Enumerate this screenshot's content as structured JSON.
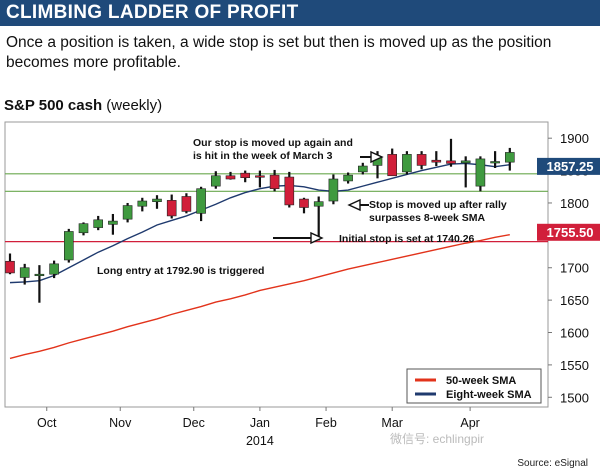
{
  "header": {
    "title": "CLIMBING LADDER OF PROFIT",
    "subtitle": "Once a position is taken, a wide stop is set but then is moved up as the position becomes more profitable."
  },
  "chart_heading": {
    "bold": "S&P 500 cash",
    "light": "(weekly)"
  },
  "source": "Source: eSignal",
  "watermark": "微信号: echlingpir",
  "colors": {
    "up": "#3f9a3f",
    "down": "#d11f3a",
    "sma50": "#e2331b",
    "sma8": "#1f3a6e",
    "hline_green": "#6aa84f",
    "hline_red": "#d11f3a",
    "tag_blue": "#1f4a7a",
    "tag_red": "#d11f3a"
  },
  "chart_data": {
    "type": "candlestick",
    "title": "S&P 500 cash (weekly)",
    "ylim": [
      1485,
      1925
    ],
    "yticks": [
      1500,
      1550,
      1600,
      1650,
      1700,
      1750,
      1800,
      1850,
      1900
    ],
    "x_month_labels": [
      "Oct",
      "Nov",
      "Dec",
      "Jan",
      "Feb",
      "Mar",
      "Apr"
    ],
    "x_month_week_index": [
      2.5,
      7.5,
      12.5,
      17,
      21.5,
      26,
      31.3
    ],
    "year_label": "2014",
    "hlines": [
      {
        "value": 1845,
        "label": "1857.25",
        "tag_value": 1857.25,
        "color": "green"
      },
      {
        "value": 1818,
        "label": "",
        "color": "green"
      },
      {
        "value": 1740.26,
        "label": "1755.50",
        "tag_value": 1755.5,
        "color": "red"
      }
    ],
    "candles": [
      {
        "o": 1710,
        "h": 1722,
        "l": 1690,
        "c": 1692
      },
      {
        "o": 1685,
        "h": 1706,
        "l": 1674,
        "c": 1700
      },
      {
        "o": 1690,
        "h": 1704,
        "l": 1646,
        "c": 1690
      },
      {
        "o": 1690,
        "h": 1711,
        "l": 1684,
        "c": 1706
      },
      {
        "o": 1712,
        "h": 1760,
        "l": 1708,
        "c": 1756
      },
      {
        "o": 1754,
        "h": 1770,
        "l": 1750,
        "c": 1768
      },
      {
        "o": 1762,
        "h": 1780,
        "l": 1758,
        "c": 1774
      },
      {
        "o": 1767,
        "h": 1783,
        "l": 1751,
        "c": 1772
      },
      {
        "o": 1775,
        "h": 1800,
        "l": 1770,
        "c": 1796
      },
      {
        "o": 1795,
        "h": 1808,
        "l": 1787,
        "c": 1803
      },
      {
        "o": 1802,
        "h": 1812,
        "l": 1791,
        "c": 1806
      },
      {
        "o": 1804,
        "h": 1813,
        "l": 1776,
        "c": 1780
      },
      {
        "o": 1810,
        "h": 1815,
        "l": 1784,
        "c": 1787
      },
      {
        "o": 1784,
        "h": 1825,
        "l": 1772,
        "c": 1822
      },
      {
        "o": 1826,
        "h": 1849,
        "l": 1822,
        "c": 1842
      },
      {
        "o": 1842,
        "h": 1848,
        "l": 1836,
        "c": 1837
      },
      {
        "o": 1846,
        "h": 1850,
        "l": 1832,
        "c": 1839
      },
      {
        "o": 1842,
        "h": 1850,
        "l": 1824,
        "c": 1840
      },
      {
        "o": 1843,
        "h": 1851,
        "l": 1818,
        "c": 1822
      },
      {
        "o": 1840,
        "h": 1848,
        "l": 1793,
        "c": 1797
      },
      {
        "o": 1806,
        "h": 1808,
        "l": 1784,
        "c": 1793
      },
      {
        "o": 1795,
        "h": 1810,
        "l": 1742,
        "c": 1802
      },
      {
        "o": 1803,
        "h": 1844,
        "l": 1798,
        "c": 1837
      },
      {
        "o": 1834,
        "h": 1847,
        "l": 1830,
        "c": 1843
      },
      {
        "o": 1848,
        "h": 1862,
        "l": 1844,
        "c": 1857
      },
      {
        "o": 1858,
        "h": 1880,
        "l": 1838,
        "c": 1870
      },
      {
        "o": 1875,
        "h": 1884,
        "l": 1842,
        "c": 1842
      },
      {
        "o": 1848,
        "h": 1880,
        "l": 1844,
        "c": 1875
      },
      {
        "o": 1875,
        "h": 1880,
        "l": 1852,
        "c": 1858
      },
      {
        "o": 1866,
        "h": 1880,
        "l": 1857,
        "c": 1863
      },
      {
        "o": 1865,
        "h": 1899,
        "l": 1856,
        "c": 1861
      },
      {
        "o": 1862,
        "h": 1872,
        "l": 1824,
        "c": 1865
      },
      {
        "o": 1826,
        "h": 1872,
        "l": 1818,
        "c": 1868
      },
      {
        "o": 1864,
        "h": 1880,
        "l": 1854,
        "c": 1864
      },
      {
        "o": 1863,
        "h": 1885,
        "l": 1850,
        "c": 1878
      }
    ],
    "series": [
      {
        "name": "50-week SMA",
        "values": [
          1560,
          1566,
          1571,
          1577,
          1584,
          1590,
          1596,
          1602,
          1609,
          1615,
          1621,
          1628,
          1634,
          1640,
          1647,
          1652,
          1658,
          1665,
          1670,
          1675,
          1680,
          1686,
          1692,
          1698,
          1703,
          1708,
          1713,
          1718,
          1723,
          1728,
          1733,
          1738,
          1742,
          1747,
          1751
        ]
      },
      {
        "name": "Eight-week SMA",
        "values": [
          1677,
          1678,
          1680,
          1688,
          1700,
          1712,
          1724,
          1734,
          1745,
          1755,
          1766,
          1773,
          1780,
          1789,
          1798,
          1808,
          1816,
          1822,
          1826,
          1827,
          1825,
          1820,
          1818,
          1820,
          1826,
          1832,
          1838,
          1844,
          1850,
          1855,
          1860,
          1861,
          1859,
          1856,
          1859
        ]
      }
    ],
    "annotations": [
      {
        "id": "stop2",
        "text1": "Our stop is moved up again and",
        "text2": "is hit in the week of March 3"
      },
      {
        "id": "stop1",
        "text1": "Stop is moved up after rally",
        "text2": "surpasses 8-week SMA"
      },
      {
        "id": "initial",
        "text1": "Initial stop is set at 1740.26",
        "text2": ""
      },
      {
        "id": "entry",
        "text1": "Long entry at 1792.90 is triggered",
        "text2": ""
      }
    ],
    "legend": [
      {
        "label": "50-week SMA"
      },
      {
        "label": "Eight-week SMA"
      }
    ],
    "legend_position": "bottom-right"
  }
}
